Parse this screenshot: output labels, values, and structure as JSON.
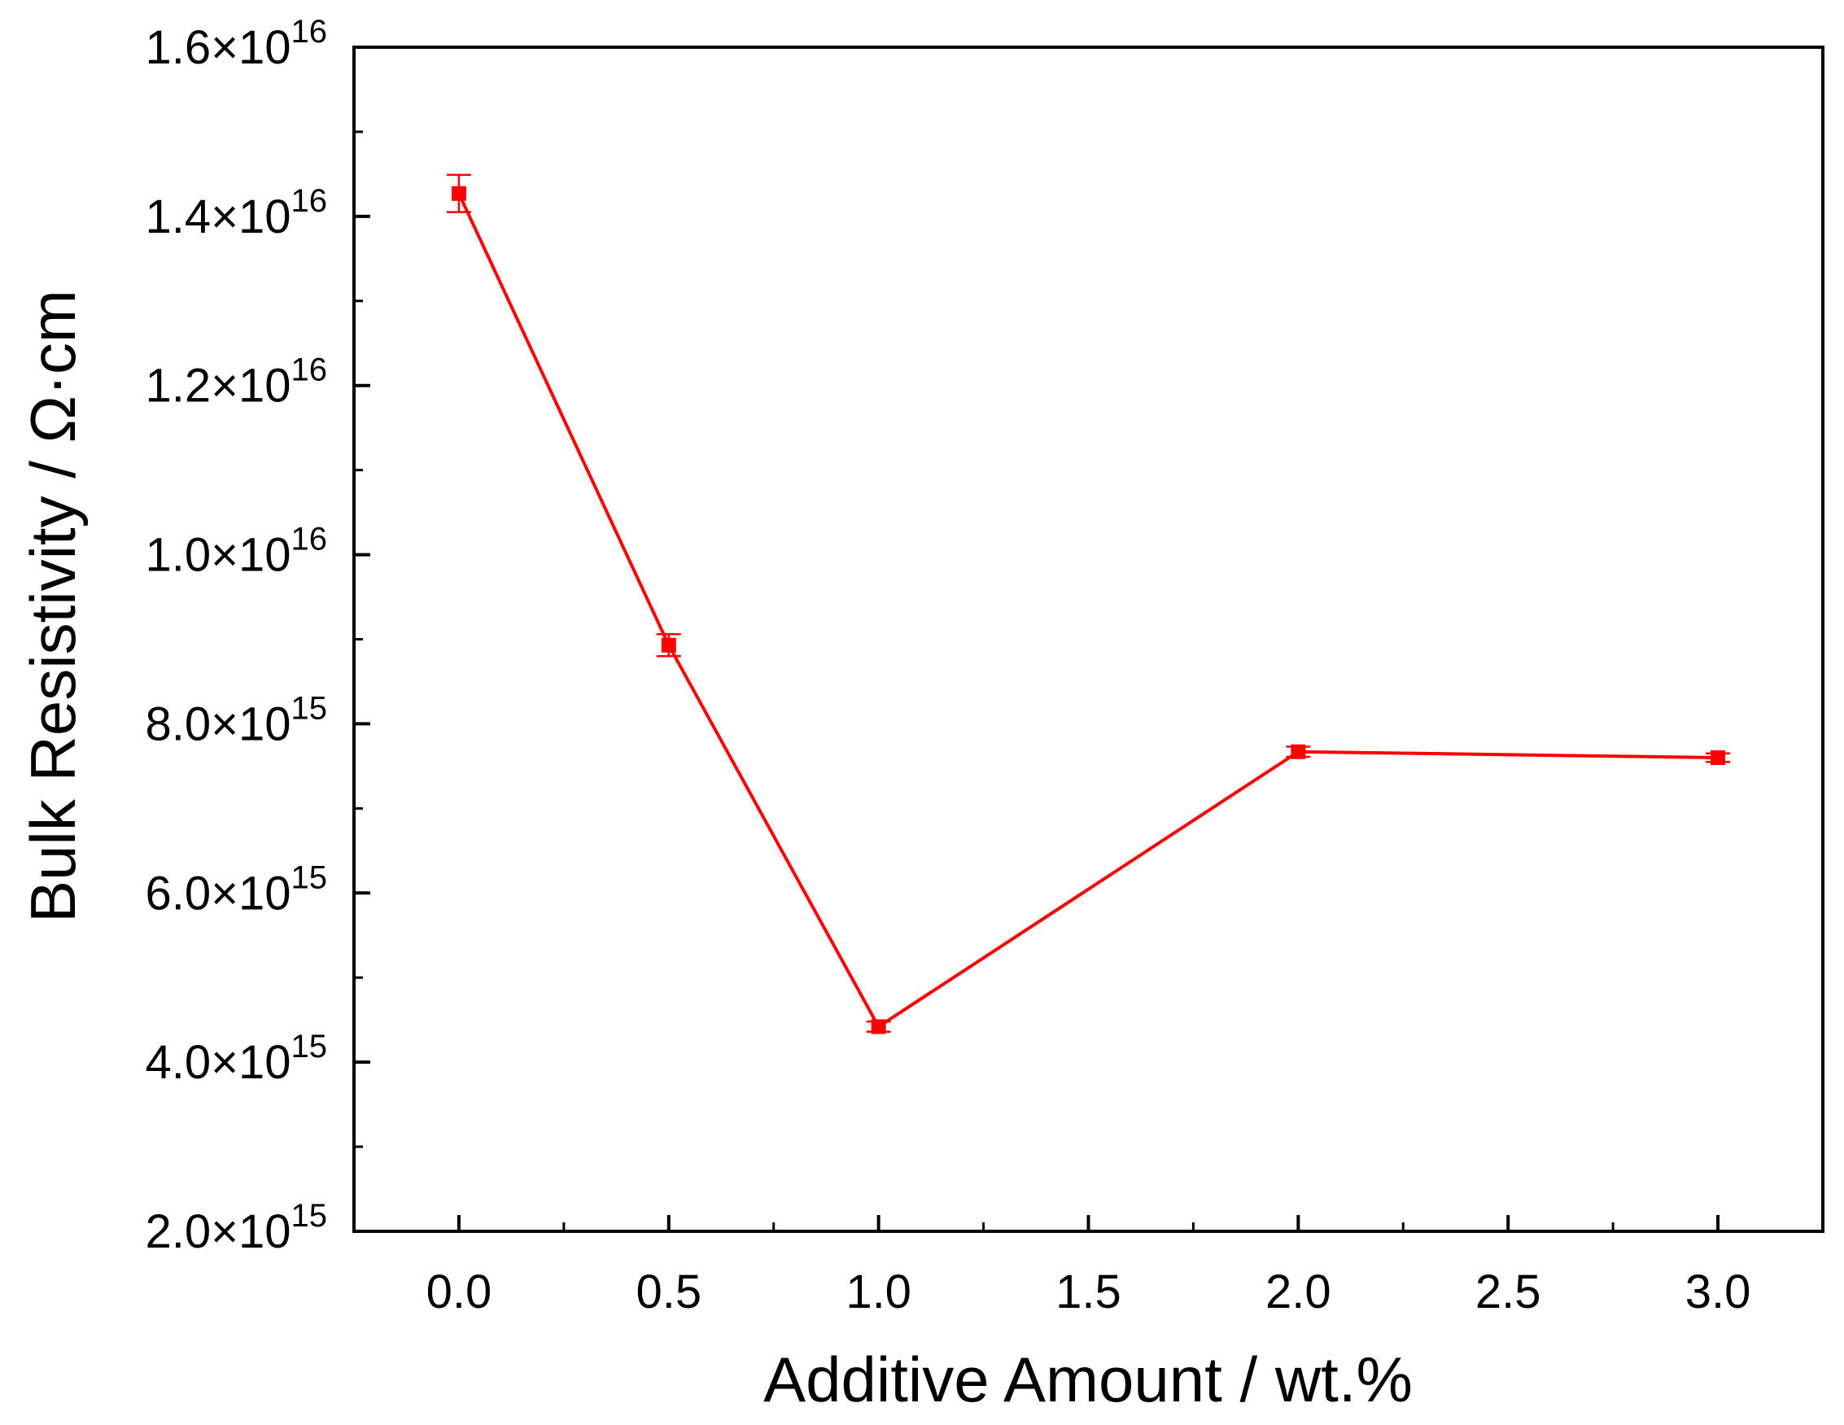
{
  "chart_data": {
    "type": "line",
    "title": "",
    "xlabel": "Additive Amount / wt.%",
    "ylabel": "Bulk Resistivity / Ω·cm",
    "xlim": [
      -0.25,
      3.25
    ],
    "ylim": [
      2000000000000000.0,
      1.6e+16
    ],
    "x_ticks": [
      {
        "value": 0.0,
        "label": "0.0"
      },
      {
        "value": 0.5,
        "label": "0.5"
      },
      {
        "value": 1.0,
        "label": "1.0"
      },
      {
        "value": 1.5,
        "label": "1.5"
      },
      {
        "value": 2.0,
        "label": "2.0"
      },
      {
        "value": 2.5,
        "label": "2.5"
      },
      {
        "value": 3.0,
        "label": "3.0"
      }
    ],
    "y_ticks": [
      {
        "value": 2000000000000000.0,
        "mantissa": "2.0×10",
        "exponent": "15"
      },
      {
        "value": 4000000000000000.0,
        "mantissa": "4.0×10",
        "exponent": "15"
      },
      {
        "value": 6000000000000000.0,
        "mantissa": "6.0×10",
        "exponent": "15"
      },
      {
        "value": 8000000000000000.0,
        "mantissa": "8.0×10",
        "exponent": "15"
      },
      {
        "value": 1e+16,
        "mantissa": "1.0×10",
        "exponent": "16"
      },
      {
        "value": 1.2e+16,
        "mantissa": "1.2×10",
        "exponent": "16"
      },
      {
        "value": 1.4e+16,
        "mantissa": "1.4×10",
        "exponent": "16"
      },
      {
        "value": 1.6e+16,
        "mantissa": "1.6×10",
        "exponent": "16"
      }
    ],
    "series": [
      {
        "color": "#ff0000",
        "marker": "square",
        "x": [
          0.0,
          0.5,
          1.0,
          2.0,
          3.0
        ],
        "y": [
          1.427e+16,
          8930000000000000.0,
          4420000000000000.0,
          7670000000000000.0,
          7600000000000000.0
        ],
        "error": [
          220000000000000.0,
          130000000000000.0,
          60000000000000.0,
          60000000000000.0,
          50000000000000.0
        ]
      }
    ],
    "grid": false,
    "legend": "none"
  }
}
